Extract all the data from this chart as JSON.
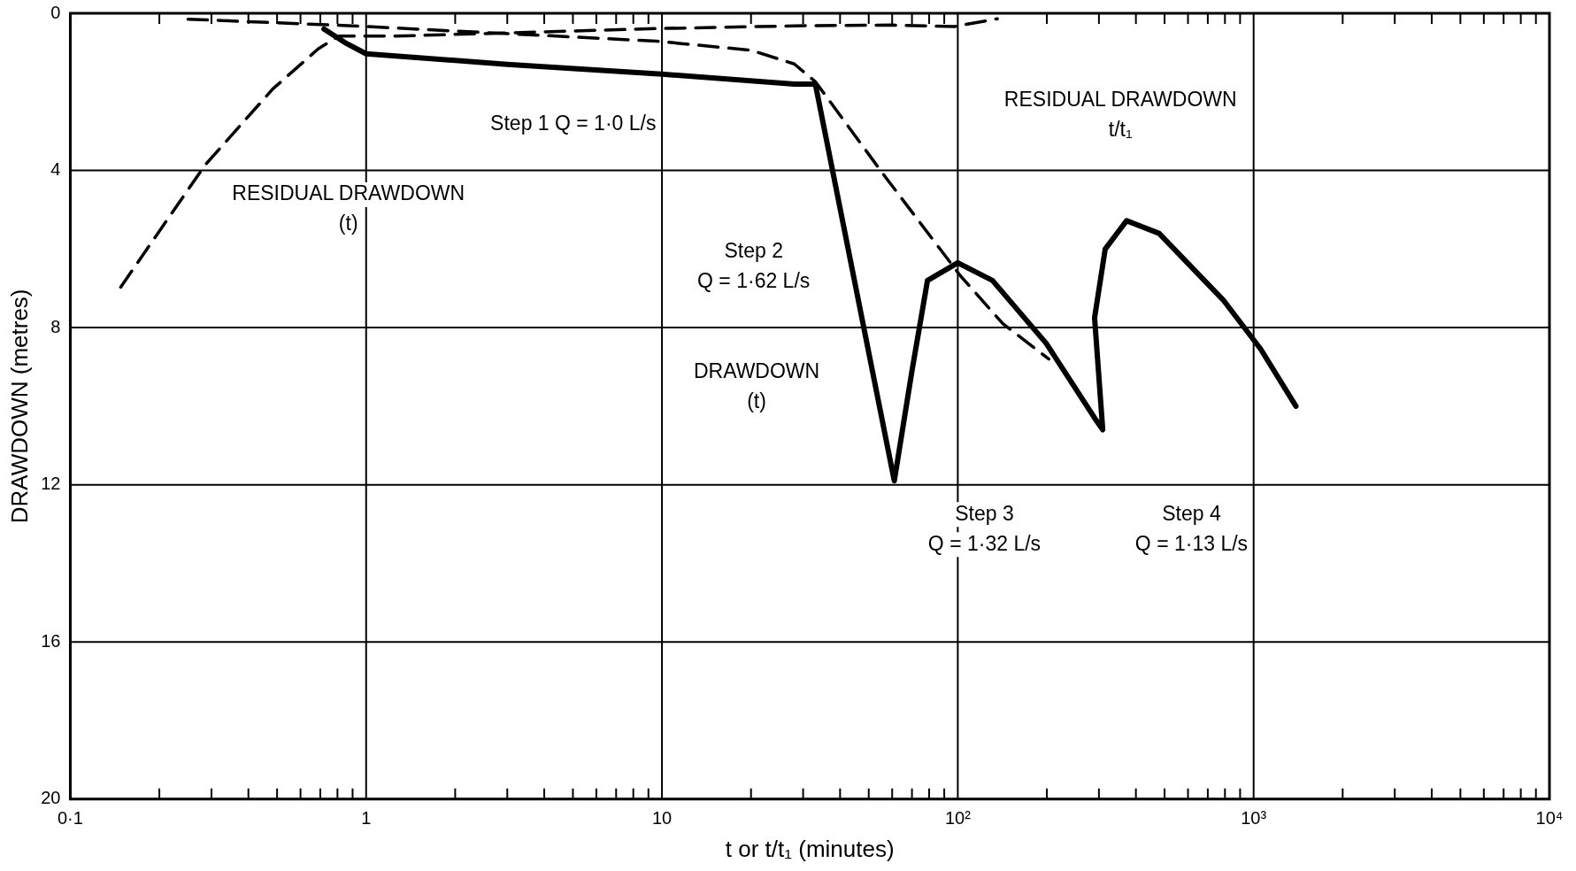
{
  "chart_data": {
    "type": "line",
    "xlabel": "t or t/t₁ (minutes)",
    "ylabel": "DRAWDOWN (metres)",
    "log": "x",
    "grid": true,
    "legend": false,
    "marker": "none",
    "xlim": [
      0.1,
      10000
    ],
    "ylim": [
      20,
      0
    ],
    "yticks": [
      0,
      4,
      8,
      12,
      16,
      20
    ],
    "xticks": [
      {
        "value": 0.1,
        "label": "0·1"
      },
      {
        "value": 0.2,
        "label": null
      },
      {
        "value": 0.3,
        "label": null
      },
      {
        "value": 0.4,
        "label": null
      },
      {
        "value": 0.5,
        "label": null
      },
      {
        "value": 0.6,
        "label": null
      },
      {
        "value": 0.7,
        "label": null
      },
      {
        "value": 0.8,
        "label": null
      },
      {
        "value": 0.9,
        "label": null
      },
      {
        "value": 1,
        "label": "1"
      },
      {
        "value": 2,
        "label": null
      },
      {
        "value": 3,
        "label": null
      },
      {
        "value": 4,
        "label": null
      },
      {
        "value": 5,
        "label": null
      },
      {
        "value": 6,
        "label": null
      },
      {
        "value": 7,
        "label": null
      },
      {
        "value": 8,
        "label": null
      },
      {
        "value": 9,
        "label": null
      },
      {
        "value": 10,
        "label": "10"
      },
      {
        "value": 20,
        "label": null
      },
      {
        "value": 30,
        "label": null
      },
      {
        "value": 40,
        "label": null
      },
      {
        "value": 50,
        "label": null
      },
      {
        "value": 60,
        "label": null
      },
      {
        "value": 70,
        "label": null
      },
      {
        "value": 80,
        "label": null
      },
      {
        "value": 90,
        "label": null
      },
      {
        "value": 100,
        "label": "10²"
      },
      {
        "value": 200,
        "label": null
      },
      {
        "value": 300,
        "label": null
      },
      {
        "value": 400,
        "label": null
      },
      {
        "value": 500,
        "label": null
      },
      {
        "value": 600,
        "label": null
      },
      {
        "value": 700,
        "label": null
      },
      {
        "value": 800,
        "label": null
      },
      {
        "value": 900,
        "label": null
      },
      {
        "value": 1000,
        "label": "10³"
      },
      {
        "value": 2000,
        "label": null
      },
      {
        "value": 3000,
        "label": null
      },
      {
        "value": 4000,
        "label": null
      },
      {
        "value": 5000,
        "label": null
      },
      {
        "value": 6000,
        "label": null
      },
      {
        "value": 7000,
        "label": null
      },
      {
        "value": 8000,
        "label": null
      },
      {
        "value": 9000,
        "label": null
      },
      {
        "value": 10000,
        "label": "10⁴"
      }
    ],
    "series": [
      {
        "color": "#000000",
        "line_style": "solid",
        "x": [
          0.72,
          0.85,
          1,
          3,
          10,
          28,
          33,
          61,
          70,
          79,
          100,
          131,
          199,
          290,
          309,
          290,
          315,
          372,
          479,
          790,
          1057,
          1390
        ],
        "values": [
          0.4,
          0.75,
          1.03,
          1.3,
          1.55,
          1.8,
          1.8,
          11.9,
          9.1,
          6.8,
          6.35,
          6.8,
          8.4,
          10.3,
          10.6,
          7.75,
          6.0,
          5.28,
          5.6,
          7.3,
          8.55,
          10.0
        ]
      },
      {
        "color": "#000000",
        "line_style": "dashed",
        "x": [
          0.148,
          0.285,
          0.483,
          0.69,
          0.81,
          1.27,
          9.6,
          28,
          60,
          97,
          136
        ],
        "values": [
          6.97,
          3.87,
          1.93,
          0.9,
          0.58,
          0.58,
          0.39,
          0.32,
          0.3,
          0.34,
          0.14
        ]
      },
      {
        "color": "#000000",
        "line_style": "dashed",
        "x": [
          0.25,
          0.9,
          9.6,
          20,
          28,
          33,
          56.7,
          102,
          142,
          203
        ],
        "values": [
          0.15,
          0.32,
          0.71,
          0.94,
          1.29,
          1.74,
          4.15,
          6.68,
          7.9,
          8.8
        ]
      }
    ],
    "annotations": [
      "Step 1 Q = 1·0 L/s",
      "RESIDUAL DRAWDOWN\n(t)",
      "RESIDUAL DRAWDOWN\nt/t₁",
      "Step 2\nQ = 1·62 L/s",
      "DRAWDOWN\n(t)",
      "Step 3\nQ = 1·32 L/s",
      "Step 4\nQ = 1·13 L/s"
    ]
  }
}
